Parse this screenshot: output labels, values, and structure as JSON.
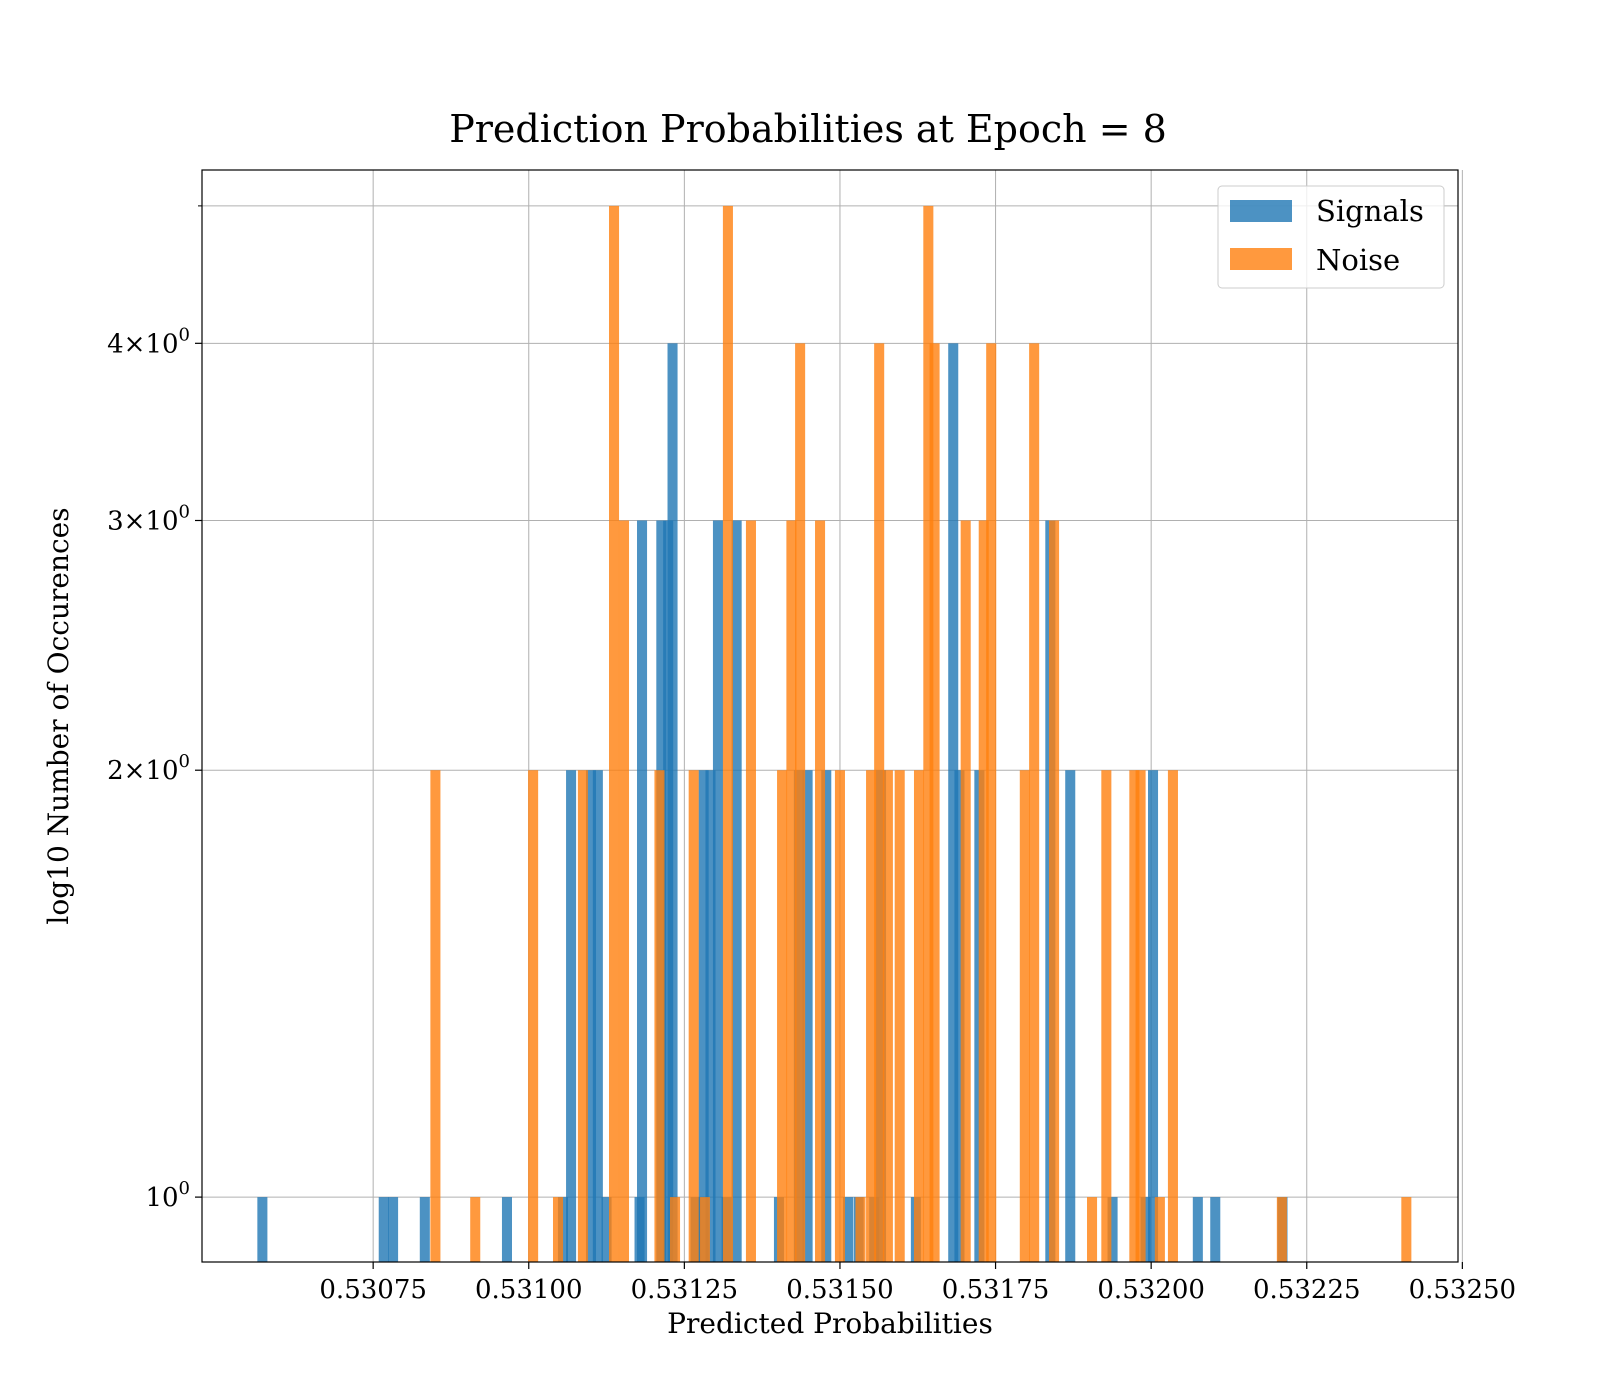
{
  "chart_data": {
    "type": "bar",
    "title": "Prediction Probabilities at Epoch = 8",
    "xlabel": "Predicted Probabilities",
    "ylabel": "log10 Number of Occurences",
    "xlim": [
      0.530475,
      0.532493
    ],
    "ylim": [
      0.9,
      5.3
    ],
    "y_scale": "log",
    "grid": true,
    "legend_position": "top-right",
    "x_ticks": [
      0.53075,
      0.531,
      0.53125,
      0.5315,
      0.53175,
      0.532,
      0.53225,
      0.5325
    ],
    "x_tick_labels": [
      "0.53075",
      "0.53100",
      "0.53125",
      "0.53150",
      "0.53175",
      "0.53200",
      "0.53225",
      "0.53250"
    ],
    "y_ticks": [
      1,
      2,
      3,
      4
    ],
    "y_tick_labels": [
      "10",
      "2×10",
      "3×10",
      "4×10"
    ],
    "y_tick_exponent": "0",
    "y_extra_grid": [
      5
    ],
    "series": [
      {
        "name": "Signals",
        "color": "#1f77b4",
        "opacity": 0.8,
        "bins": [
          [
            0.530572,
            1
          ],
          [
            0.530767,
            1
          ],
          [
            0.530782,
            1
          ],
          [
            0.530833,
            1
          ],
          [
            0.530965,
            1
          ],
          [
            0.531055,
            1
          ],
          [
            0.531068,
            2
          ],
          [
            0.5311,
            2
          ],
          [
            0.531111,
            2
          ],
          [
            0.531125,
            1
          ],
          [
            0.531178,
            1
          ],
          [
            0.531182,
            3
          ],
          [
            0.531213,
            3
          ],
          [
            0.531224,
            3
          ],
          [
            0.531231,
            4
          ],
          [
            0.531268,
            1
          ],
          [
            0.531281,
            2
          ],
          [
            0.531292,
            2
          ],
          [
            0.531304,
            3
          ],
          [
            0.531318,
            1
          ],
          [
            0.531334,
            3
          ],
          [
            0.531402,
            1
          ],
          [
            0.531434,
            2
          ],
          [
            0.531448,
            2
          ],
          [
            0.531478,
            2
          ],
          [
            0.531513,
            1
          ],
          [
            0.53153,
            1
          ],
          [
            0.531555,
            1
          ],
          [
            0.531566,
            2
          ],
          [
            0.531622,
            1
          ],
          [
            0.531682,
            4
          ],
          [
            0.531692,
            2
          ],
          [
            0.531724,
            2
          ],
          [
            0.531838,
            3
          ],
          [
            0.53187,
            2
          ],
          [
            0.531938,
            1
          ],
          [
            0.531991,
            1
          ],
          [
            0.532003,
            2
          ],
          [
            0.532075,
            1
          ],
          [
            0.532103,
            1
          ],
          [
            0.532211,
            1
          ]
        ]
      },
      {
        "name": "Noise",
        "color": "#ff7f0e",
        "opacity": 0.8,
        "bins": [
          [
            0.53085,
            2
          ],
          [
            0.530914,
            1
          ],
          [
            0.531007,
            2
          ],
          [
            0.531047,
            1
          ],
          [
            0.531087,
            2
          ],
          [
            0.531137,
            5
          ],
          [
            0.531153,
            3
          ],
          [
            0.53121,
            2
          ],
          [
            0.531235,
            1
          ],
          [
            0.531265,
            2
          ],
          [
            0.531283,
            1
          ],
          [
            0.53132,
            5
          ],
          [
            0.531357,
            3
          ],
          [
            0.531407,
            2
          ],
          [
            0.531422,
            3
          ],
          [
            0.531436,
            4
          ],
          [
            0.531468,
            3
          ],
          [
            0.5315,
            2
          ],
          [
            0.531533,
            1
          ],
          [
            0.53155,
            2
          ],
          [
            0.531563,
            4
          ],
          [
            0.531577,
            2
          ],
          [
            0.531596,
            2
          ],
          [
            0.531627,
            2
          ],
          [
            0.531642,
            5
          ],
          [
            0.531652,
            4
          ],
          [
            0.531702,
            3
          ],
          [
            0.531731,
            3
          ],
          [
            0.531743,
            4
          ],
          [
            0.531797,
            2
          ],
          [
            0.531812,
            4
          ],
          [
            0.531844,
            3
          ],
          [
            0.531905,
            1
          ],
          [
            0.531928,
            2
          ],
          [
            0.531973,
            2
          ],
          [
            0.531983,
            2
          ],
          [
            0.532014,
            1
          ],
          [
            0.532035,
            2
          ],
          [
            0.53221,
            1
          ],
          [
            0.53241,
            1
          ]
        ]
      }
    ]
  }
}
